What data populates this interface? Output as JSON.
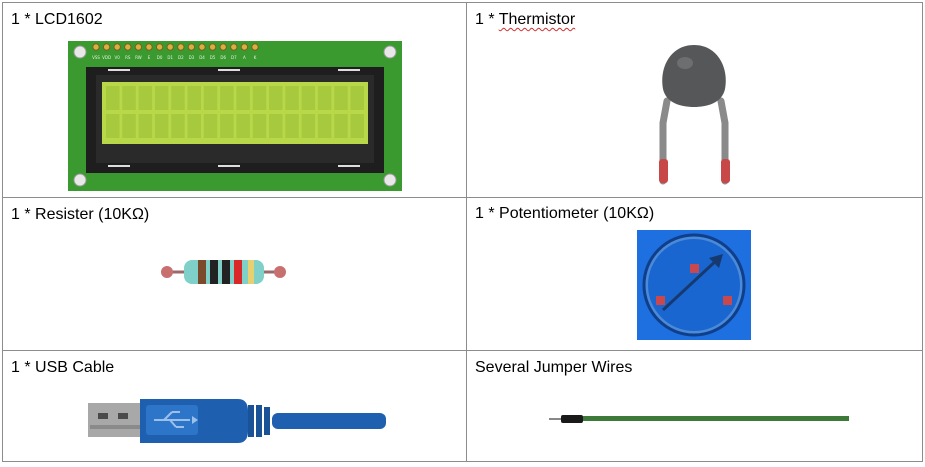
{
  "parts": [
    {
      "label_prefix": "1 * ",
      "label": "LCD1602",
      "icon": "lcd1602-icon",
      "lcd_pins": [
        "VSS",
        "VDD",
        "V0",
        "RS",
        "RW",
        "E",
        "D0",
        "D1",
        "D2",
        "D3",
        "D4",
        "D5",
        "D6",
        "D7",
        "A",
        "K"
      ]
    },
    {
      "label_prefix": "1 * ",
      "label": "Thermistor",
      "icon": "thermistor-icon",
      "spell_flag": true
    },
    {
      "label_prefix": "",
      "label": "1 * Resister (10KΩ)",
      "icon": "resistor-icon"
    },
    {
      "label_prefix": "",
      "label": "1 * Potentiometer (10KΩ)",
      "icon": "potentiometer-icon"
    },
    {
      "label_prefix": "",
      "label": "1 * USB Cable",
      "icon": "usb-cable-icon"
    },
    {
      "label_prefix": "",
      "label": "Several Jumper Wires",
      "icon": "jumper-wire-icon"
    }
  ],
  "colors": {
    "pcb_green": "#3a9a2f",
    "lcd_screen": "#b8d84a",
    "thermistor_body": "#555759",
    "usb_blue": "#1f5fb0",
    "pot_blue": "#1e6fe0",
    "wire_green": "#3d7a3a"
  }
}
